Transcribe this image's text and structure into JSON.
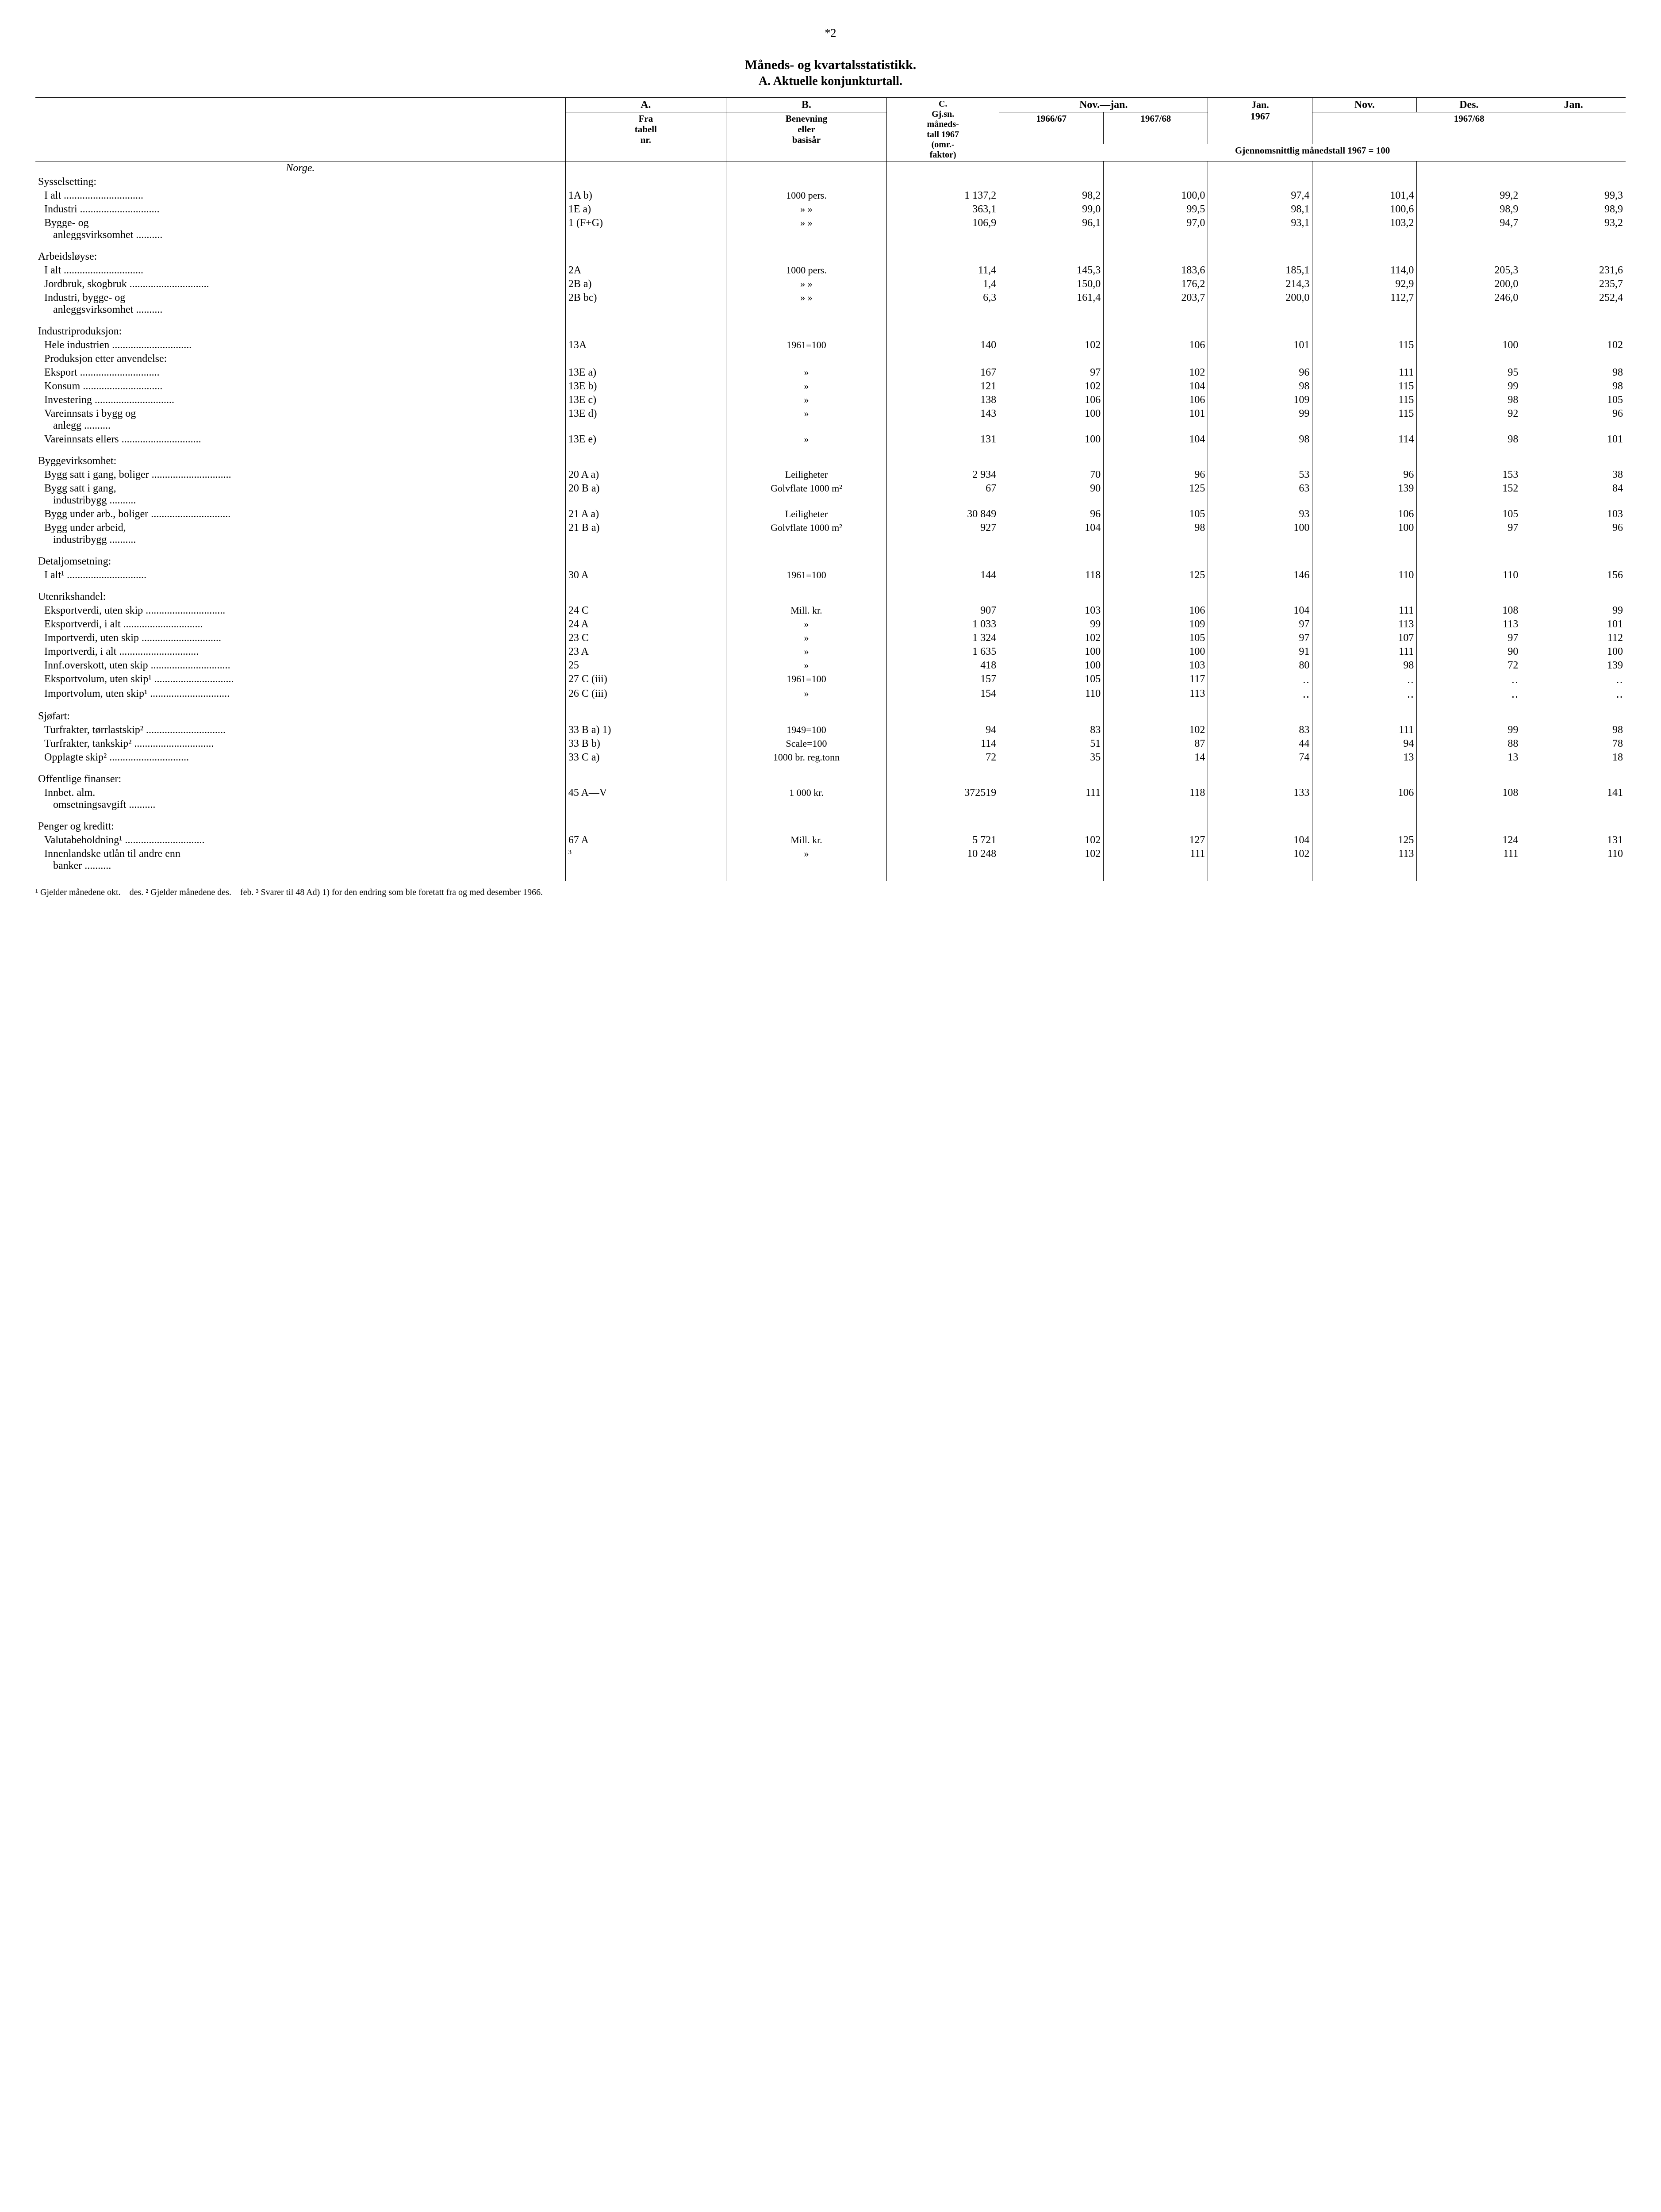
{
  "page_number": "*2",
  "title": "Måneds- og kvartalsstatistikk.",
  "subtitle": "A. Aktuelle konjunkturtall.",
  "header": {
    "colA_top": "A.",
    "colA_sub": "Fra\ntabell\nnr.",
    "colB_top": "B.",
    "colB_sub": "Benevning\neller\nbasisår",
    "colC_top": "C.",
    "colC_sub": "Gj.sn.\nmåneds-\ntall 1967\n(omr.-\nfaktor)",
    "novjan": "Nov.—jan.",
    "y6667": "1966/67",
    "y6768": "1967/68",
    "jan": "Jan.",
    "jan67": "1967",
    "nov": "Nov.",
    "des": "Des.",
    "y6768b": "1967/68",
    "gjennom": "Gjennomsnittlig månedstall 1967 = 100"
  },
  "sections": [
    {
      "title": "Norge.",
      "groups": [
        {
          "label": "Sysselsetting:",
          "rows": [
            {
              "label": "I alt",
              "a": "1A b)",
              "b": "1000 pers.",
              "c": "1 137,2",
              "v": [
                "98,2",
                "100,0",
                "97,4",
                "101,4",
                "99,2",
                "99,3"
              ]
            },
            {
              "label": "Industri",
              "a": "1E a)",
              "b": "»       »",
              "c": "363,1",
              "v": [
                "99,0",
                "99,5",
                "98,1",
                "100,6",
                "98,9",
                "98,9"
              ]
            },
            {
              "label": "Bygge- og anleggsvirksomhet",
              "a": "1 (F+G)",
              "b": "»       »",
              "c": "106,9",
              "v": [
                "96,1",
                "97,0",
                "93,1",
                "103,2",
                "94,7",
                "93,2"
              ],
              "wrap": true
            }
          ]
        },
        {
          "label": "Arbeidsløyse:",
          "rows": [
            {
              "label": "I alt",
              "a": "2A",
              "b": "1000 pers.",
              "c": "11,4",
              "v": [
                "145,3",
                "183,6",
                "185,1",
                "114,0",
                "205,3",
                "231,6"
              ]
            },
            {
              "label": "Jordbruk, skogbruk",
              "a": "2B a)",
              "b": "»       »",
              "c": "1,4",
              "v": [
                "150,0",
                "176,2",
                "214,3",
                "92,9",
                "200,0",
                "235,7"
              ]
            },
            {
              "label": "Industri, bygge- og anleggsvirksomhet",
              "a": "2B bc)",
              "b": "»       »",
              "c": "6,3",
              "v": [
                "161,4",
                "203,7",
                "200,0",
                "112,7",
                "246,0",
                "252,4"
              ],
              "wrap": true
            }
          ]
        },
        {
          "label": "Industriproduksjon:",
          "rows": [
            {
              "label": "Hele industrien",
              "a": "13A",
              "b": "1961=100",
              "c": "140",
              "v": [
                "102",
                "106",
                "101",
                "115",
                "100",
                "102"
              ]
            },
            {
              "label": "Produksjon etter anvendelse:",
              "sub": true
            },
            {
              "label": "Eksport",
              "a": "13E a)",
              "b": "»",
              "c": "167",
              "v": [
                "97",
                "102",
                "96",
                "111",
                "95",
                "98"
              ]
            },
            {
              "label": "Konsum",
              "a": "13E b)",
              "b": "»",
              "c": "121",
              "v": [
                "102",
                "104",
                "98",
                "115",
                "99",
                "98"
              ]
            },
            {
              "label": "Investering",
              "a": "13E c)",
              "b": "»",
              "c": "138",
              "v": [
                "106",
                "106",
                "109",
                "115",
                "98",
                "105"
              ]
            },
            {
              "label": "Vareinnsats i bygg og anlegg",
              "a": "13E d)",
              "b": "»",
              "c": "143",
              "v": [
                "100",
                "101",
                "99",
                "115",
                "92",
                "96"
              ],
              "wrap": true
            },
            {
              "label": "Vareinnsats ellers",
              "a": "13E e)",
              "b": "»",
              "c": "131",
              "v": [
                "100",
                "104",
                "98",
                "114",
                "98",
                "101"
              ]
            }
          ]
        },
        {
          "label": "Byggevirksomhet:",
          "rows": [
            {
              "label": "Bygg satt i gang, boliger",
              "a": "20 A a)",
              "b": "Leiligheter",
              "c": "2 934",
              "v": [
                "70",
                "96",
                "53",
                "96",
                "153",
                "38"
              ]
            },
            {
              "label": "Bygg satt i gang, industribygg",
              "a": "20 B a)",
              "b": "Golvflate 1000 m²",
              "c": "67",
              "v": [
                "90",
                "125",
                "63",
                "139",
                "152",
                "84"
              ],
              "wrap": true
            },
            {
              "label": "Bygg under arb., boliger",
              "a": "21 A a)",
              "b": "Leiligheter",
              "c": "30 849",
              "v": [
                "96",
                "105",
                "93",
                "106",
                "105",
                "103"
              ]
            },
            {
              "label": "Bygg under arbeid, industribygg",
              "a": "21 B a)",
              "b": "Golvflate 1000 m²",
              "c": "927",
              "v": [
                "104",
                "98",
                "100",
                "100",
                "97",
                "96"
              ],
              "wrap": true
            }
          ]
        },
        {
          "label": "Detaljomsetning:",
          "rows": [
            {
              "label": "I alt¹",
              "a": "30 A",
              "b": "1961=100",
              "c": "144",
              "v": [
                "118",
                "125",
                "146",
                "110",
                "110",
                "156"
              ]
            }
          ]
        },
        {
          "label": "Utenrikshandel:",
          "rows": [
            {
              "label": "Eksportverdi, uten skip",
              "a": "24 C",
              "b": "Mill. kr.",
              "c": "907",
              "v": [
                "103",
                "106",
                "104",
                "111",
                "108",
                "99"
              ]
            },
            {
              "label": "Eksportverdi, i alt",
              "a": "24 A",
              "b": "»",
              "c": "1 033",
              "v": [
                "99",
                "109",
                "97",
                "113",
                "113",
                "101"
              ]
            },
            {
              "label": "Importverdi, uten skip",
              "a": "23 C",
              "b": "»",
              "c": "1 324",
              "v": [
                "102",
                "105",
                "97",
                "107",
                "97",
                "112"
              ]
            },
            {
              "label": "Importverdi, i alt",
              "a": "23 A",
              "b": "»",
              "c": "1 635",
              "v": [
                "100",
                "100",
                "91",
                "111",
                "90",
                "100"
              ]
            },
            {
              "label": "Innf.overskott, uten skip",
              "a": "25",
              "b": "»",
              "c": "418",
              "v": [
                "100",
                "103",
                "80",
                "98",
                "72",
                "139"
              ]
            },
            {
              "label": "Eksportvolum, uten skip¹",
              "a": "27 C (iii)",
              "b": "1961=100",
              "c": "157",
              "v": [
                "105",
                "117",
                "‥",
                "‥",
                "‥",
                "‥"
              ]
            },
            {
              "label": "Importvolum, uten skip¹",
              "a": "26 C (iii)",
              "b": "»",
              "c": "154",
              "v": [
                "110",
                "113",
                "‥",
                "‥",
                "‥",
                "‥"
              ]
            }
          ]
        },
        {
          "label": "Sjøfart:",
          "rows": [
            {
              "label": "Turfrakter, tørrlastskip²",
              "a": "33 B a) 1)",
              "b": "1949=100",
              "c": "94",
              "v": [
                "83",
                "102",
                "83",
                "111",
                "99",
                "98"
              ]
            },
            {
              "label": "Turfrakter, tankskip²",
              "a": "33 B b)",
              "b": "Scale=100",
              "c": "114",
              "v": [
                "51",
                "87",
                "44",
                "94",
                "88",
                "78"
              ]
            },
            {
              "label": "Opplagte skip²",
              "a": "33 C a)",
              "b": "1000 br. reg.tonn",
              "c": "72",
              "v": [
                "35",
                "14",
                "74",
                "13",
                "13",
                "18"
              ]
            }
          ]
        },
        {
          "label": "Offentlige finanser:",
          "rows": [
            {
              "label": "Innbet. alm. omsetningsavgift",
              "a": "45 A—V",
              "b": "1 000 kr.",
              "c": "372519",
              "v": [
                "111",
                "118",
                "133",
                "106",
                "108",
                "141"
              ],
              "wrap": true
            }
          ]
        },
        {
          "label": "Penger og kreditt:",
          "rows": [
            {
              "label": "Valutabeholdning¹",
              "a": "67 A",
              "b": "Mill. kr.",
              "c": "5 721",
              "v": [
                "102",
                "127",
                "104",
                "125",
                "124",
                "131"
              ]
            },
            {
              "label": "Innenlandske utlån til andre enn banker",
              "a": "³",
              "b": "»",
              "c": "10 248",
              "v": [
                "102",
                "111",
                "102",
                "113",
                "111",
                "110"
              ],
              "wrap": true
            }
          ]
        }
      ]
    }
  ],
  "footnotes": "¹ Gjelder månedene okt.—des.  ² Gjelder månedene des.—feb.  ³ Svarer til 48 Ad) 1) for den endring som ble foretatt fra og med desember 1966."
}
